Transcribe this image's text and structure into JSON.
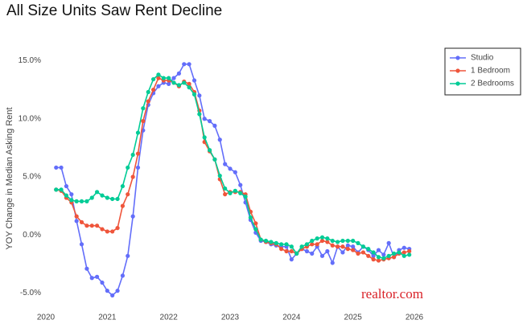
{
  "chart_data": {
    "type": "line",
    "title": "All Size Units Saw Rent Decline",
    "y_label": "YOY Change in Median Asking Rent",
    "logo": "realtor.com",
    "x": [
      2020.167,
      2020.25,
      2020.333,
      2020.417,
      2020.5,
      2020.583,
      2020.667,
      2020.75,
      2020.833,
      2020.917,
      2021,
      2021.083,
      2021.167,
      2021.25,
      2021.333,
      2021.417,
      2021.5,
      2021.583,
      2021.667,
      2021.75,
      2021.833,
      2021.917,
      2022,
      2022.083,
      2022.167,
      2022.25,
      2022.333,
      2022.417,
      2022.5,
      2022.583,
      2022.667,
      2022.75,
      2022.833,
      2022.917,
      2023,
      2023.083,
      2023.167,
      2023.25,
      2023.333,
      2023.417,
      2023.5,
      2023.583,
      2023.667,
      2023.75,
      2023.833,
      2023.917,
      2024,
      2024.083,
      2024.167,
      2024.25,
      2024.333,
      2024.417,
      2024.5,
      2024.583,
      2024.667,
      2024.75,
      2024.833,
      2024.917,
      2025,
      2025.083,
      2025.167,
      2025.25,
      2025.333,
      2025.417,
      2025.5,
      2025.583,
      2025.667,
      2025.75,
      2025.833,
      2025.917
    ],
    "series": [
      {
        "name": "Studio",
        "color": "#636efa",
        "values": [
          5.8,
          5.8,
          4.2,
          3.5,
          1.2,
          -0.8,
          -2.9,
          -3.7,
          -3.6,
          -4.1,
          -4.8,
          -5.2,
          -4.8,
          -3.5,
          -1.8,
          1.6,
          5.8,
          9.0,
          11.2,
          12.2,
          12.8,
          13.1,
          13.0,
          13.5,
          13.9,
          14.7,
          14.7,
          13.3,
          12.0,
          10.0,
          9.8,
          9.4,
          8.2,
          6.1,
          5.7,
          5.4,
          4.3,
          2.8,
          1.3,
          0.2,
          -0.5,
          -0.6,
          -0.8,
          -0.9,
          -1.0,
          -1.0,
          -2.1,
          -1.6,
          -1.2,
          -1.4,
          -1.6,
          -1.0,
          -1.8,
          -1.4,
          -2.4,
          -1.0,
          -1.5,
          -0.9,
          -1.0,
          -1.5,
          -1.0,
          -1.3,
          -1.8,
          -1.3,
          -1.7,
          -0.7,
          -1.9,
          -1.3,
          -1.1,
          -1.2
        ]
      },
      {
        "name": "1 Bedroom",
        "color": "#ef553b",
        "values": [
          3.9,
          3.8,
          3.2,
          2.8,
          1.6,
          1.1,
          0.8,
          0.8,
          0.8,
          0.5,
          0.3,
          0.3,
          0.6,
          2.5,
          3.5,
          5.0,
          7.0,
          9.8,
          11.5,
          12.5,
          13.5,
          13.3,
          13.3,
          13.1,
          12.8,
          13.2,
          13.0,
          12.3,
          10.7,
          8.0,
          7.2,
          6.5,
          4.8,
          3.5,
          3.7,
          3.7,
          3.7,
          3.5,
          2.0,
          1.0,
          -0.4,
          -0.6,
          -0.7,
          -0.8,
          -1.2,
          -1.4,
          -1.4,
          -1.6,
          -1.2,
          -1.0,
          -0.8,
          -0.8,
          -0.5,
          -0.6,
          -0.9,
          -1.0,
          -1.0,
          -1.2,
          -1.3,
          -1.6,
          -1.5,
          -1.8,
          -2.1,
          -2.2,
          -2.1,
          -2.0,
          -1.9,
          -1.6,
          -1.5,
          -1.4
        ]
      },
      {
        "name": "2 Bedrooms",
        "color": "#00cc96",
        "values": [
          3.9,
          3.9,
          3.4,
          3.0,
          2.9,
          2.9,
          2.9,
          3.2,
          3.7,
          3.4,
          3.2,
          3.1,
          3.1,
          4.2,
          5.8,
          6.9,
          8.8,
          10.9,
          12.3,
          13.4,
          13.8,
          13.5,
          13.5,
          13.1,
          12.9,
          13.1,
          12.7,
          12.1,
          10.4,
          8.4,
          7.3,
          6.5,
          5.1,
          4.0,
          3.6,
          3.8,
          3.6,
          3.3,
          1.5,
          0.5,
          -0.4,
          -0.5,
          -0.6,
          -0.7,
          -0.8,
          -0.8,
          -1.0,
          -1.6,
          -1.0,
          -0.8,
          -0.5,
          -0.3,
          -0.2,
          -0.3,
          -0.5,
          -0.6,
          -0.5,
          -0.5,
          -0.5,
          -0.7,
          -1.0,
          -1.2,
          -1.5,
          -1.9,
          -2.0,
          -1.8,
          -1.6,
          -1.5,
          -1.8,
          -1.7
        ]
      }
    ],
    "xlim": [
      2020,
      2026
    ],
    "xticks": [
      2020,
      2021,
      2022,
      2023,
      2024,
      2025,
      2026
    ],
    "ylim": [
      -6,
      16
    ],
    "yticks": [
      {
        "value": -5,
        "label": "-5.0%"
      },
      {
        "value": 0,
        "label": "0.0%"
      },
      {
        "value": 5,
        "label": "5.0%"
      },
      {
        "value": 10,
        "label": "10.0%"
      },
      {
        "value": 15,
        "label": "15.0%"
      }
    ],
    "grid": false,
    "legend": "top-right"
  }
}
